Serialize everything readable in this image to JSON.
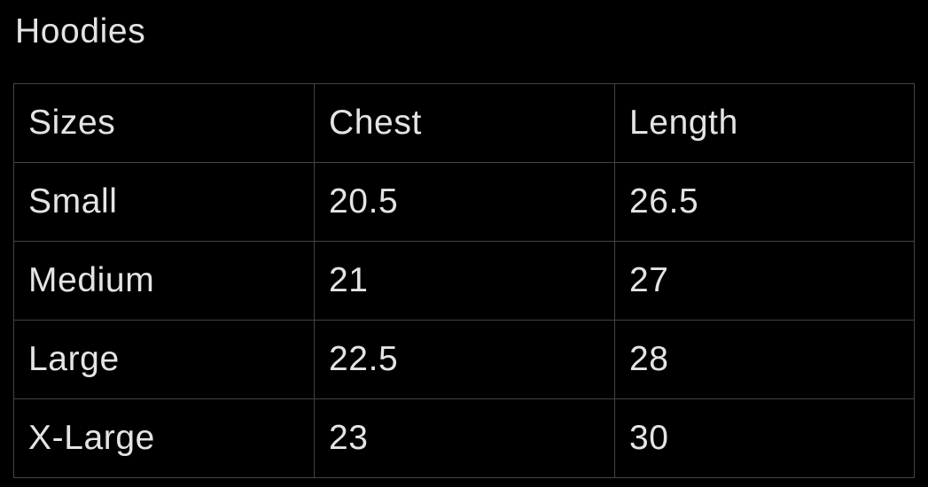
{
  "title": "Hoodies",
  "table": {
    "headers": [
      "Sizes",
      "Chest",
      "Length"
    ],
    "rows": [
      [
        "Small",
        "20.5",
        "26.5"
      ],
      [
        "Medium",
        "21",
        "27"
      ],
      [
        "Large",
        "22.5",
        "28"
      ],
      [
        "X-Large",
        "23",
        "30"
      ]
    ]
  }
}
